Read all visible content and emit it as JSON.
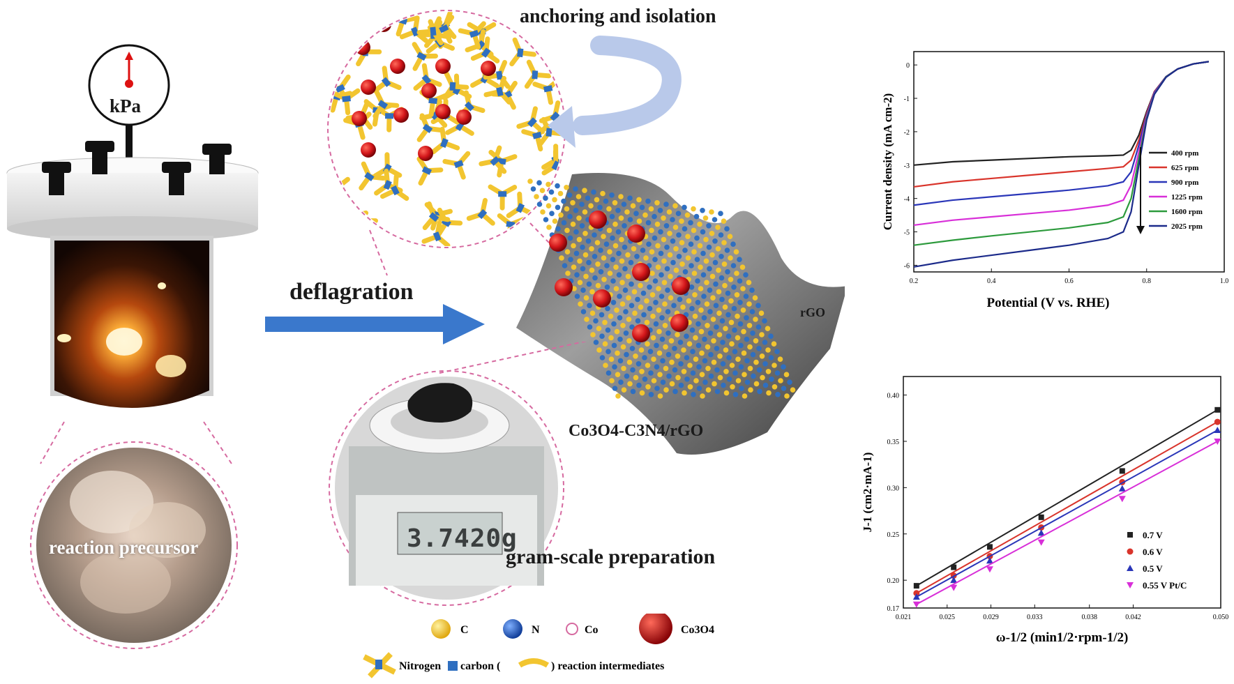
{
  "labels": {
    "anchoring": "anchoring and isolation",
    "deflagration": "deflagration",
    "gram_scale": "gram-scale preparation",
    "composite": "Co3O4-C3N4/rGO",
    "rgo": "rGO",
    "gauge_unit": "kPa",
    "precursor": "reaction precursor",
    "scale_reading": "3.7420g"
  },
  "legend": {
    "c": "C",
    "n": "N",
    "co": "Co",
    "co3o4": "Co3O4",
    "intermediates_prefix": "Nitrogen",
    "intermediates_middle": "carbon (",
    "intermediates_suffix": ") reaction intermediates"
  },
  "colors": {
    "yellow": "#f2c530",
    "blue": "#2f6fc0",
    "red": "#d3161a",
    "arrow_blue": "#3a78cc"
  },
  "chart_data": [
    {
      "type": "line",
      "xlabel": "Potential (V vs. RHE)",
      "ylabel": "Current density (mA cm-2)",
      "xlim": [
        0.2,
        1.0
      ],
      "ylim": [
        -6.2,
        0.4
      ],
      "xticks": [
        0.2,
        0.4,
        0.6,
        0.8,
        1.0
      ],
      "yticks": [
        -6,
        -5,
        -4,
        -3,
        -2,
        -1,
        0
      ],
      "series": [
        {
          "name": "400 rpm",
          "color": "#222222",
          "x": [
            0.2,
            0.3,
            0.4,
            0.5,
            0.6,
            0.7,
            0.74,
            0.76,
            0.78,
            0.8,
            0.82,
            0.85,
            0.88,
            0.92,
            0.96
          ],
          "values": [
            -3.0,
            -2.9,
            -2.85,
            -2.8,
            -2.75,
            -2.72,
            -2.7,
            -2.55,
            -2.1,
            -1.4,
            -0.8,
            -0.35,
            -0.12,
            0.03,
            0.1
          ]
        },
        {
          "name": "625 rpm",
          "color": "#d9342b",
          "x": [
            0.2,
            0.3,
            0.4,
            0.5,
            0.6,
            0.7,
            0.74,
            0.76,
            0.78,
            0.8,
            0.82,
            0.85,
            0.88,
            0.92,
            0.96
          ],
          "values": [
            -3.65,
            -3.5,
            -3.4,
            -3.3,
            -3.2,
            -3.1,
            -3.05,
            -2.85,
            -2.25,
            -1.45,
            -0.8,
            -0.35,
            -0.12,
            0.03,
            0.1
          ]
        },
        {
          "name": "900 rpm",
          "color": "#2a36b8",
          "x": [
            0.2,
            0.3,
            0.4,
            0.5,
            0.6,
            0.7,
            0.74,
            0.76,
            0.78,
            0.8,
            0.82,
            0.85,
            0.88,
            0.92,
            0.96
          ],
          "values": [
            -4.2,
            -4.05,
            -3.95,
            -3.85,
            -3.75,
            -3.62,
            -3.5,
            -3.2,
            -2.4,
            -1.5,
            -0.82,
            -0.35,
            -0.12,
            0.03,
            0.1
          ]
        },
        {
          "name": "1225 rpm",
          "color": "#d82fd8",
          "x": [
            0.2,
            0.3,
            0.4,
            0.5,
            0.6,
            0.7,
            0.74,
            0.76,
            0.78,
            0.8,
            0.82,
            0.85,
            0.88,
            0.92,
            0.96
          ],
          "values": [
            -4.8,
            -4.65,
            -4.55,
            -4.45,
            -4.35,
            -4.2,
            -4.05,
            -3.6,
            -2.6,
            -1.55,
            -0.85,
            -0.36,
            -0.12,
            0.03,
            0.1
          ]
        },
        {
          "name": "1600 rpm",
          "color": "#2c9a3c",
          "x": [
            0.2,
            0.3,
            0.4,
            0.5,
            0.6,
            0.7,
            0.74,
            0.76,
            0.78,
            0.8,
            0.82,
            0.85,
            0.88,
            0.92,
            0.96
          ],
          "values": [
            -5.4,
            -5.25,
            -5.12,
            -5.0,
            -4.88,
            -4.72,
            -4.55,
            -4.0,
            -2.8,
            -1.6,
            -0.87,
            -0.36,
            -0.12,
            0.03,
            0.1
          ]
        },
        {
          "name": "2025 rpm",
          "color": "#1b2a8a",
          "x": [
            0.2,
            0.3,
            0.4,
            0.5,
            0.6,
            0.7,
            0.74,
            0.76,
            0.78,
            0.8,
            0.82,
            0.85,
            0.88,
            0.92,
            0.96
          ],
          "values": [
            -6.05,
            -5.85,
            -5.7,
            -5.55,
            -5.4,
            -5.2,
            -5.0,
            -4.4,
            -3.0,
            -1.65,
            -0.88,
            -0.37,
            -0.12,
            0.03,
            0.1
          ]
        }
      ],
      "legend_position": "right"
    },
    {
      "type": "scatter",
      "xlabel": "ω-1/2 (min1/2·rpm-1/2)",
      "ylabel": "J-1 (cm2·mA-1)",
      "xlim": [
        0.021,
        0.05
      ],
      "ylim": [
        0.17,
        0.42
      ],
      "xticks": [
        0.021,
        0.025,
        0.029,
        0.033,
        0.038,
        0.042,
        0.05
      ],
      "yticks": [
        0.17,
        0.2,
        0.25,
        0.3,
        0.35,
        0.4
      ],
      "x": [
        0.0222,
        0.0256,
        0.0289,
        0.0336,
        0.041,
        0.0497
      ],
      "series": [
        {
          "name": "0.7 V",
          "color": "#222222",
          "marker": "square",
          "values": [
            0.194,
            0.214,
            0.236,
            0.268,
            0.318,
            0.384
          ]
        },
        {
          "name": "0.6 V",
          "color": "#d9342b",
          "marker": "circle",
          "values": [
            0.186,
            0.205,
            0.226,
            0.257,
            0.306,
            0.371
          ]
        },
        {
          "name": "0.5 V",
          "color": "#2a36b8",
          "marker": "triangle",
          "values": [
            0.182,
            0.2,
            0.221,
            0.251,
            0.299,
            0.362
          ]
        },
        {
          "name": "0.55 V Pt/C",
          "color": "#d82fd8",
          "marker": "triangle-down",
          "values": [
            0.174,
            0.192,
            0.212,
            0.241,
            0.288,
            0.35
          ]
        }
      ],
      "legend_position": "bottom-right"
    }
  ]
}
